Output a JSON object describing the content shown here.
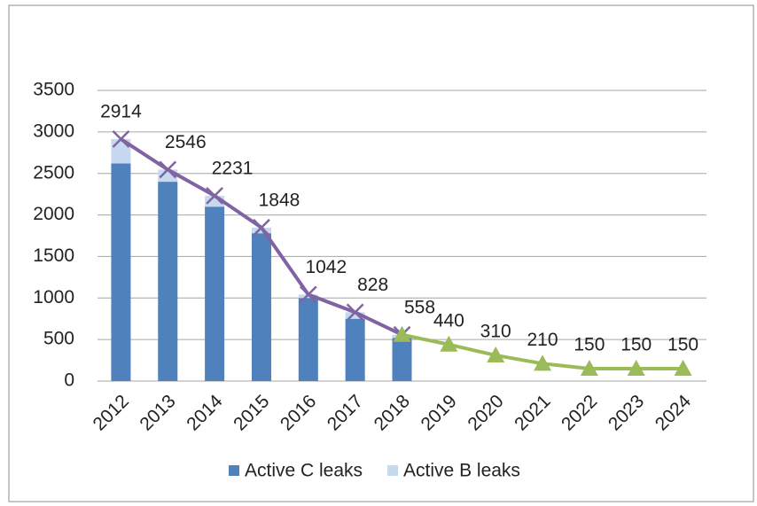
{
  "chart_data": {
    "type": "bar",
    "categories": [
      "2012",
      "2013",
      "2014",
      "2015",
      "2016",
      "2017",
      "2018",
      "2019",
      "2020",
      "2021",
      "2022",
      "2023",
      "2024"
    ],
    "series": [
      {
        "name": "Active C leaks",
        "color": "#4f81bd",
        "values": [
          2620,
          2400,
          2100,
          1780,
          1000,
          750,
          520,
          null,
          null,
          null,
          null,
          null,
          null
        ]
      },
      {
        "name": "Active B leaks",
        "color": "#c6d9f1",
        "values": [
          294,
          146,
          131,
          68,
          42,
          78,
          38,
          null,
          null,
          null,
          null,
          null,
          null
        ]
      }
    ],
    "lines": [
      {
        "color": "#8064a2",
        "marker": "x",
        "values": [
          2914,
          2546,
          2231,
          1848,
          1042,
          828,
          558,
          null,
          null,
          null,
          null,
          null,
          null
        ]
      },
      {
        "color": "#9bbb59",
        "marker": "triangle",
        "values": [
          null,
          null,
          null,
          null,
          null,
          null,
          558,
          440,
          310,
          210,
          150,
          150,
          150
        ]
      }
    ],
    "ylim": [
      0,
      3500
    ],
    "yticks": [
      0,
      500,
      1000,
      1500,
      2000,
      2500,
      3000,
      3500
    ],
    "grid": true,
    "legend": "bottom"
  }
}
